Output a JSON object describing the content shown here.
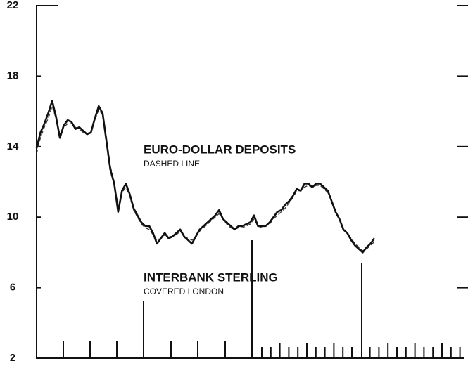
{
  "chart_data": {
    "type": "line",
    "series": [
      {
        "name": "INTERBANK STERLING",
        "note": "COVERED LONDON",
        "color": "#111111",
        "dashed": false,
        "values": [
          13.9,
          14.8,
          15.3,
          15.9,
          16.6,
          15.7,
          14.5,
          15.2,
          15.5,
          15.4,
          15.0,
          15.1,
          14.9,
          14.7,
          14.8,
          15.6,
          16.3,
          15.9,
          14.3,
          12.7,
          11.9,
          10.3,
          11.5,
          11.9,
          11.3,
          10.5,
          10.1,
          9.7,
          9.5,
          9.5,
          9.1,
          8.5,
          8.8,
          9.1,
          8.8,
          8.9,
          9.1,
          9.3,
          8.9,
          8.7,
          8.5,
          8.9,
          9.3,
          9.5,
          9.7,
          9.9,
          10.1,
          10.4,
          9.9,
          9.7,
          9.5,
          9.3,
          9.5,
          9.5,
          9.6,
          9.7,
          10.1,
          9.5,
          9.5,
          9.5,
          9.7,
          10.0,
          10.3,
          10.4,
          10.7,
          10.9,
          11.2,
          11.6,
          11.5,
          11.9,
          11.9,
          11.7,
          11.9,
          11.9,
          11.7,
          11.5,
          10.9,
          10.3,
          9.9,
          9.3,
          9.1,
          8.7,
          8.4,
          8.2,
          8.0,
          8.3,
          8.5,
          8.8
        ]
      },
      {
        "name": "EURO-DOLLAR DEPOSITS",
        "note": "DASHED LINE",
        "color": "#333333",
        "dashed": true,
        "values": [
          13.6,
          14.5,
          15.1,
          15.6,
          16.3,
          15.6,
          14.7,
          15.1,
          15.3,
          15.3,
          15.1,
          15.0,
          14.8,
          14.7,
          14.9,
          15.5,
          16.1,
          15.8,
          14.5,
          12.9,
          12.0,
          10.6,
          11.4,
          11.7,
          11.2,
          10.4,
          10.0,
          9.6,
          9.4,
          9.3,
          9.0,
          8.7,
          8.8,
          9.0,
          8.9,
          8.9,
          9.0,
          9.2,
          8.9,
          8.8,
          8.7,
          8.9,
          9.2,
          9.4,
          9.6,
          9.8,
          10.0,
          10.2,
          9.9,
          9.6,
          9.4,
          9.3,
          9.4,
          9.4,
          9.5,
          9.6,
          9.9,
          9.5,
          9.4,
          9.5,
          9.6,
          9.9,
          10.1,
          10.3,
          10.5,
          10.8,
          11.1,
          11.5,
          11.5,
          11.7,
          11.8,
          11.7,
          11.8,
          11.8,
          11.6,
          11.4,
          10.9,
          10.4,
          9.9,
          9.4,
          9.1,
          8.8,
          8.5,
          8.3,
          8.1,
          8.2,
          8.4,
          8.6
        ]
      }
    ],
    "ylim": [
      2,
      22
    ],
    "yticks": [
      2,
      6,
      10,
      14,
      18,
      22
    ]
  }
}
